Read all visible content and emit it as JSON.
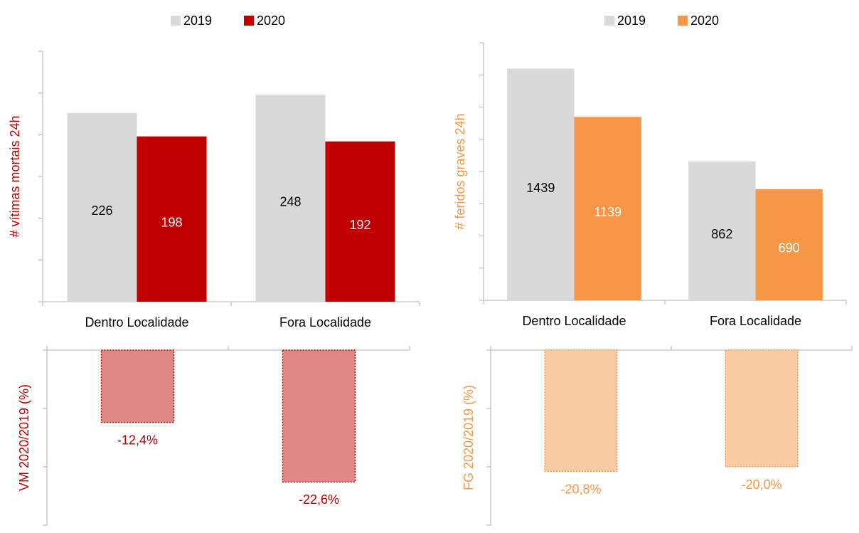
{
  "chart_data": [
    {
      "type": "bar",
      "categories": [
        "Dentro Localidade",
        "Fora Localidade"
      ],
      "series": [
        {
          "name": "2019",
          "color": "#d9d9d9",
          "label_color": "#000000",
          "values": [
            226,
            248
          ]
        },
        {
          "name": "2020",
          "color": "#c00000",
          "label_color": "#ffffff",
          "values": [
            198,
            192
          ]
        }
      ],
      "ylabel": "# vítimas mortais 24h",
      "ylabel_color": "#c00000",
      "ylim": [
        0,
        300
      ],
      "yticks": [
        0,
        50,
        100,
        150,
        200,
        250,
        300
      ],
      "show_tick_labels": false,
      "legend": "top"
    },
    {
      "type": "bar",
      "categories": [
        "Dentro Localidade",
        "Fora Localidade"
      ],
      "series": [
        {
          "name": "2019",
          "color": "#d9d9d9",
          "label_color": "#000000",
          "values": [
            1439,
            862
          ]
        },
        {
          "name": "2020",
          "color": "#f79646",
          "label_color": "#ffffff",
          "values": [
            1139,
            690
          ]
        }
      ],
      "ylabel": "# feridos graves 24h",
      "ylabel_color": "#f79646",
      "ylim": [
        0,
        1600
      ],
      "yticks": [
        0,
        200,
        400,
        600,
        800,
        1000,
        1200,
        1400,
        1600
      ],
      "show_tick_labels": false,
      "legend": "top"
    },
    {
      "type": "change",
      "values": [
        -12.4,
        -22.6
      ],
      "value_labels": [
        "-12,4%",
        "-22,6%"
      ],
      "color": "#e08787",
      "border_color": "#c00000",
      "label_color": "#c00000",
      "ylabel": "VM 2020/2019 (%)",
      "ylabel_color": "#c00000",
      "ylim": [
        -30,
        0
      ],
      "yticks": [
        -30,
        -20,
        -10,
        0
      ],
      "show_tick_labels": false
    },
    {
      "type": "change",
      "values": [
        -20.8,
        -20.0
      ],
      "value_labels": [
        "-20,8%",
        "-20,0%"
      ],
      "color": "#f9cba4",
      "border_color": "#f79646",
      "label_color": "#f79646",
      "ylabel": "FG 2020/2019 (%)",
      "ylabel_color": "#f79646",
      "ylim": [
        -30,
        0
      ],
      "yticks": [
        -30,
        -20,
        -10,
        0
      ],
      "show_tick_labels": false
    }
  ]
}
